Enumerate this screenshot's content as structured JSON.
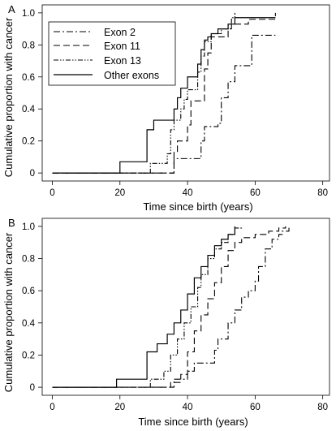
{
  "chart_data": [
    {
      "panel_label": "A",
      "type": "line",
      "line_shape": "step",
      "xlabel": "Time since birth (years)",
      "ylabel": "Cumulative proportion with cancer",
      "xlim": [
        -3,
        82
      ],
      "ylim": [
        -0.05,
        1.05
      ],
      "xticks": [
        "0",
        "20",
        "40",
        "60",
        "80"
      ],
      "yticks": [
        "0",
        "0.2",
        "0.4",
        "0.6",
        "0.8",
        "1.0"
      ],
      "legend_position": "top-left",
      "series": [
        {
          "name": "Exon 2",
          "style": "dash-dot",
          "x": [
            0,
            35,
            36,
            43,
            44,
            45,
            47,
            49,
            50,
            52,
            54,
            57,
            59,
            66
          ],
          "y": [
            0,
            0,
            0.09,
            0.09,
            0.2,
            0.29,
            0.29,
            0.31,
            0.47,
            0.57,
            0.67,
            0.67,
            0.86,
            0.86
          ]
        },
        {
          "name": "Exon 11",
          "style": "dash",
          "x": [
            0,
            35,
            36,
            37,
            40,
            41,
            43,
            45,
            46,
            47,
            51,
            52,
            53,
            54,
            57,
            58,
            64,
            66
          ],
          "y": [
            0,
            0,
            0.13,
            0.2,
            0.3,
            0.45,
            0.45,
            0.65,
            0.75,
            0.85,
            0.85,
            0.9,
            0.93,
            0.93,
            0.93,
            0.96,
            0.96,
            1.0
          ]
        },
        {
          "name": "Exon 13",
          "style": "dash-dot-dot",
          "x": [
            0,
            28,
            29,
            34,
            35,
            36,
            38,
            39,
            40,
            43,
            44,
            45,
            47,
            50,
            52,
            53,
            54
          ],
          "y": [
            0,
            0,
            0.06,
            0.12,
            0.27,
            0.33,
            0.4,
            0.46,
            0.52,
            0.63,
            0.73,
            0.82,
            0.87,
            0.9,
            0.93,
            0.97,
            1.0
          ]
        },
        {
          "name": "Other exons",
          "style": "solid",
          "x": [
            0,
            19,
            20,
            27,
            28,
            29,
            30,
            34,
            36,
            37,
            38,
            40,
            43,
            44,
            45,
            46,
            47,
            49,
            52,
            53,
            54,
            58,
            66
          ],
          "y": [
            0,
            0,
            0.07,
            0.07,
            0.27,
            0.27,
            0.33,
            0.33,
            0.4,
            0.47,
            0.53,
            0.6,
            0.68,
            0.77,
            0.83,
            0.85,
            0.87,
            0.9,
            0.93,
            0.93,
            0.97,
            0.97,
            0.97
          ]
        }
      ]
    },
    {
      "panel_label": "B",
      "type": "line",
      "line_shape": "step",
      "xlabel": "Time since birth (years)",
      "ylabel": "Cumulative proportion with cancer",
      "xlim": [
        -3,
        82
      ],
      "ylim": [
        -0.05,
        1.05
      ],
      "xticks": [
        "0",
        "20",
        "40",
        "60",
        "80"
      ],
      "yticks": [
        "0",
        "0.2",
        "0.4",
        "0.6",
        "0.8",
        "1.0"
      ],
      "series": [
        {
          "name": "Exon 2",
          "style": "dash-dot",
          "x": [
            0,
            36,
            40,
            42,
            48,
            49,
            52,
            54,
            56,
            58,
            60,
            61,
            63,
            65,
            67,
            68,
            70
          ],
          "y": [
            0,
            0.05,
            0.1,
            0.15,
            0.23,
            0.3,
            0.4,
            0.48,
            0.56,
            0.6,
            0.66,
            0.75,
            0.86,
            0.92,
            0.95,
            0.97,
            1.0
          ]
        },
        {
          "name": "Exon 11",
          "style": "dash",
          "x": [
            0,
            35,
            38,
            40,
            42,
            44,
            46,
            48,
            50,
            52,
            54,
            56,
            60,
            64,
            67,
            69
          ],
          "y": [
            0,
            0.03,
            0.08,
            0.22,
            0.35,
            0.45,
            0.55,
            0.65,
            0.75,
            0.85,
            0.9,
            0.93,
            0.95,
            0.97,
            0.99,
            1.0
          ]
        },
        {
          "name": "Exon 13",
          "style": "dash-dot-dot",
          "x": [
            0,
            29,
            33,
            35,
            37,
            39,
            41,
            43,
            44,
            46,
            48,
            50,
            52,
            54,
            56
          ],
          "y": [
            0,
            0.05,
            0.1,
            0.2,
            0.3,
            0.4,
            0.5,
            0.62,
            0.7,
            0.8,
            0.86,
            0.9,
            0.95,
            0.99,
            1.0
          ]
        },
        {
          "name": "Other exons",
          "style": "solid",
          "x": [
            0,
            19,
            20,
            28,
            29,
            31,
            34,
            36,
            38,
            40,
            42,
            44,
            46,
            48,
            50,
            52,
            54
          ],
          "y": [
            0,
            0.05,
            0.05,
            0.22,
            0.22,
            0.27,
            0.33,
            0.4,
            0.48,
            0.58,
            0.68,
            0.75,
            0.82,
            0.88,
            0.92,
            0.95,
            1.0
          ]
        }
      ]
    }
  ]
}
